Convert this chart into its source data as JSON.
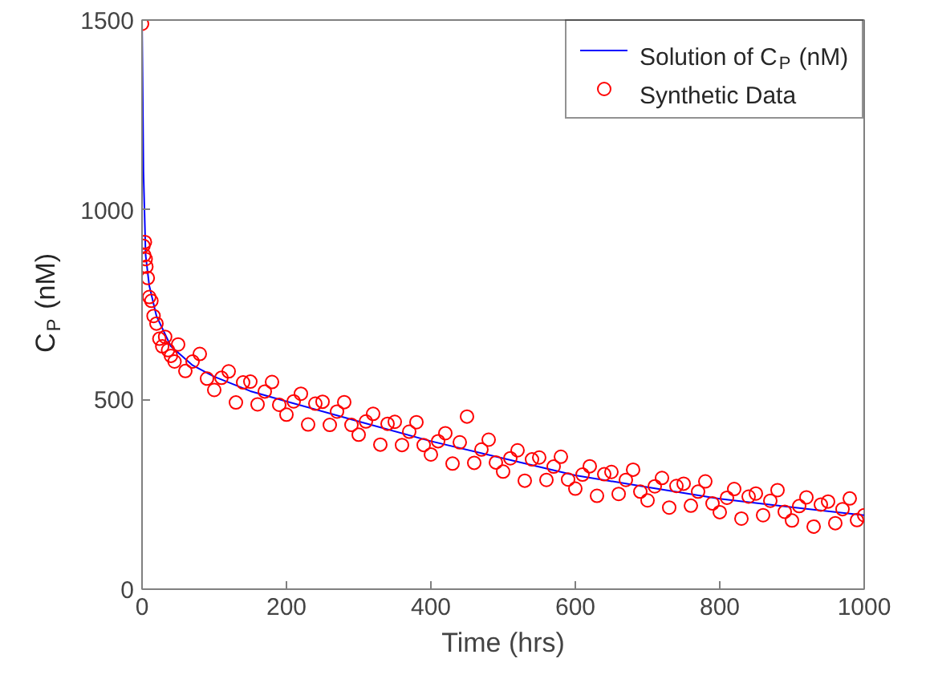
{
  "chart_data": {
    "type": "scatter",
    "xlabel": "Time (hrs)",
    "ylabel": "C$_{P}$ (nM)",
    "xlim": [
      0,
      1000
    ],
    "ylim": [
      0,
      1500
    ],
    "xticks": [
      0,
      200,
      400,
      600,
      800,
      1000
    ],
    "yticks": [
      0,
      500,
      1000,
      1500
    ],
    "grid": false,
    "legend": "top right",
    "series": [
      {
        "name": "Solution of C$_{P}$ (nM)",
        "type": "line",
        "color": "#0000ff",
        "marker": "none",
        "line_style": "solid",
        "x": [
          0,
          2,
          5,
          10,
          20,
          40,
          70,
          100,
          150,
          200,
          300,
          400,
          500,
          600,
          700,
          800,
          900,
          1000
        ],
        "values": [
          1500,
          1100,
          880,
          800,
          720,
          640,
          590,
          560,
          522,
          495,
          442,
          390,
          345,
          300,
          269,
          238,
          216,
          195
        ]
      },
      {
        "name": "Synthetic Data",
        "type": "scatter",
        "color": "#ff0000",
        "marker": "circle",
        "x": [
          0,
          2,
          3,
          4,
          5,
          6,
          8,
          10,
          13,
          16,
          20,
          24,
          28,
          32,
          36,
          40,
          45,
          50,
          60,
          70,
          80,
          90,
          100,
          110,
          120,
          130,
          140,
          150,
          160,
          170,
          180,
          190,
          200,
          210,
          220,
          230,
          240,
          250,
          260,
          270,
          280,
          290,
          300,
          310,
          320,
          330,
          340,
          350,
          360,
          370,
          380,
          390,
          400,
          410,
          420,
          430,
          440,
          450,
          460,
          470,
          480,
          490,
          500,
          510,
          520,
          530,
          540,
          550,
          560,
          570,
          580,
          590,
          600,
          610,
          620,
          630,
          640,
          650,
          660,
          670,
          680,
          690,
          700,
          710,
          720,
          730,
          740,
          750,
          760,
          770,
          780,
          790,
          800,
          810,
          820,
          830,
          840,
          850,
          860,
          870,
          880,
          890,
          900,
          910,
          920,
          930,
          940,
          950,
          960,
          970,
          980,
          990,
          1000
        ],
        "values": [
          1490,
          905,
          880,
          915,
          870,
          850,
          820,
          770,
          760,
          720,
          700,
          660,
          640,
          665,
          630,
          615,
          600,
          645,
          575,
          600,
          620,
          555,
          525,
          557,
          574,
          492,
          545,
          547,
          487,
          521,
          546,
          486,
          460,
          495,
          515,
          434,
          489,
          494,
          433,
          468,
          493,
          433,
          407,
          442,
          462,
          381,
          436,
          441,
          380,
          415,
          440,
          380,
          355,
          390,
          411,
          331,
          387,
          455,
          333,
          368,
          394,
          334,
          310,
          345,
          366,
          286,
          342,
          347,
          288,
          323,
          349,
          289,
          265,
          302,
          324,
          246,
          303,
          309,
          251,
          288,
          315,
          257,
          234,
          271,
          293,
          215,
          272,
          278,
          220,
          257,
          284,
          226,
          203,
          241,
          264,
          186,
          244,
          252,
          195,
          233,
          261,
          204,
          181,
          219,
          242,
          165,
          223,
          231,
          174,
          211,
          239,
          182,
          195
        ]
      }
    ]
  }
}
